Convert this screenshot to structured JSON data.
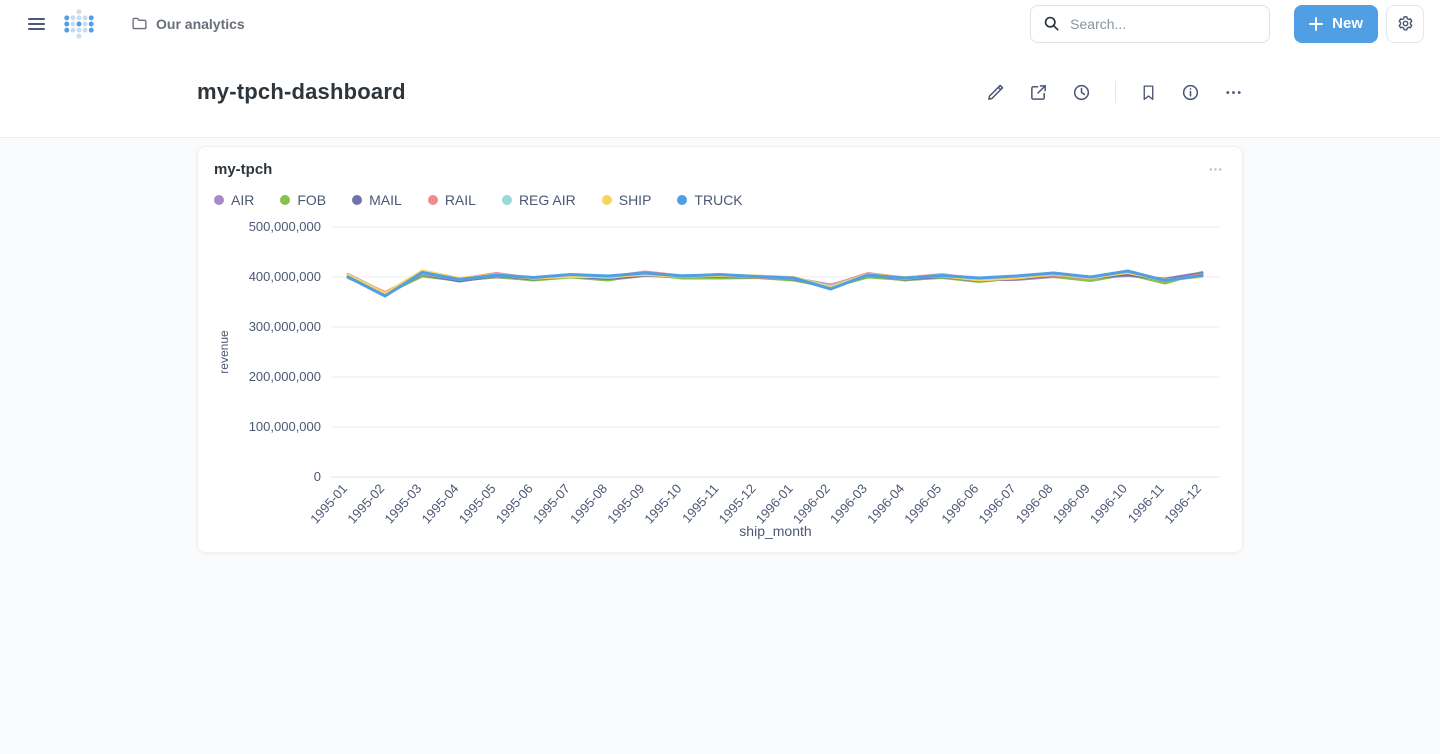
{
  "navbar": {
    "breadcrumb": "Our analytics",
    "search_placeholder": "Search...",
    "new_button_label": "New"
  },
  "page": {
    "title": "my-tpch-dashboard"
  },
  "card": {
    "title": "my-tpch"
  },
  "colors": {
    "brand": "#509ee3",
    "text_dark": "#2e353b",
    "text_medium": "#4c5773",
    "grid_line": "#eceef1",
    "axis_line": "#e3e6ea",
    "page_background": "#f9fbfc"
  },
  "icons": {
    "hamburger": "menu-icon",
    "logo": "metabase-dots-logo",
    "folder": "collection-folder-icon",
    "search": "magnifier-icon",
    "plus": "plus-icon",
    "gear": "settings-gear-icon",
    "pencil": "edit-pencil-icon",
    "share": "share-icon",
    "clock": "history-clock-icon",
    "bookmark": "bookmark-icon",
    "info": "info-circle-icon",
    "ellipsis": "more-ellipsis-icon"
  },
  "chart_data": {
    "type": "line",
    "title": "my-tpch",
    "xlabel": "ship_month",
    "ylabel": "revenue",
    "ylim": [
      0,
      500000000
    ],
    "y_ticks": [
      0,
      100000000,
      200000000,
      300000000,
      400000000,
      500000000
    ],
    "grid": true,
    "legend_position": "top-left",
    "x": [
      "1995-01",
      "1995-02",
      "1995-03",
      "1995-04",
      "1995-05",
      "1995-06",
      "1995-07",
      "1995-08",
      "1995-09",
      "1995-10",
      "1995-11",
      "1995-12",
      "1996-01",
      "1996-02",
      "1996-03",
      "1996-04",
      "1996-05",
      "1996-06",
      "1996-07",
      "1996-08",
      "1996-09",
      "1996-10",
      "1996-11",
      "1996-12"
    ],
    "series": [
      {
        "name": "AIR",
        "color": "#A989C5",
        "values": [
          405000000,
          368000000,
          404000000,
          394000000,
          400000000,
          395000000,
          403000000,
          395000000,
          403000000,
          400000000,
          402000000,
          401000000,
          397000000,
          384000000,
          403000000,
          394000000,
          400000000,
          395000000,
          395000000,
          401000000,
          399000000,
          403000000,
          396000000,
          408000000
        ]
      },
      {
        "name": "FOB",
        "color": "#88BF4D",
        "values": [
          399000000,
          366000000,
          402000000,
          393000000,
          401000000,
          394000000,
          400000000,
          394000000,
          406000000,
          398000000,
          398000000,
          399000000,
          394000000,
          380000000,
          400000000,
          395000000,
          399000000,
          391000000,
          399000000,
          401000000,
          393000000,
          406000000,
          388000000,
          409000000
        ]
      },
      {
        "name": "MAIL",
        "color": "#7172AD",
        "values": [
          403000000,
          367000000,
          406000000,
          392000000,
          403000000,
          396000000,
          402000000,
          397000000,
          404000000,
          401000000,
          401000000,
          400000000,
          396000000,
          382000000,
          404000000,
          396000000,
          401000000,
          393000000,
          397000000,
          403000000,
          398000000,
          405000000,
          395000000,
          407000000
        ]
      },
      {
        "name": "RAIL",
        "color": "#EF8C8C",
        "values": [
          402000000,
          369000000,
          407000000,
          396000000,
          407000000,
          397000000,
          403000000,
          400000000,
          410000000,
          402000000,
          404000000,
          400000000,
          397000000,
          383000000,
          407000000,
          398000000,
          405000000,
          395000000,
          400000000,
          404000000,
          397000000,
          411000000,
          392000000,
          405000000
        ]
      },
      {
        "name": "REG AIR",
        "color": "#98D9D9",
        "values": [
          401000000,
          365000000,
          408000000,
          395000000,
          404000000,
          398000000,
          404000000,
          399000000,
          407000000,
          403000000,
          403000000,
          401000000,
          398000000,
          381000000,
          405000000,
          397000000,
          404000000,
          396000000,
          401000000,
          407000000,
          398000000,
          410000000,
          393000000,
          402000000
        ]
      },
      {
        "name": "SHIP",
        "color": "#F9D45C",
        "values": [
          404000000,
          367000000,
          412000000,
          397000000,
          405000000,
          398000000,
          401000000,
          401000000,
          405000000,
          401000000,
          403000000,
          402000000,
          399000000,
          378000000,
          405000000,
          399000000,
          402000000,
          394000000,
          398000000,
          406000000,
          399000000,
          409000000,
          394000000,
          401000000
        ]
      },
      {
        "name": "TRUCK",
        "color": "#509EE3",
        "values": [
          400000000,
          362000000,
          409000000,
          395000000,
          404000000,
          399000000,
          405000000,
          402000000,
          408000000,
          402000000,
          405000000,
          401000000,
          398000000,
          376000000,
          404000000,
          398000000,
          403000000,
          398000000,
          402000000,
          408000000,
          400000000,
          412000000,
          393000000,
          403000000
        ]
      }
    ]
  }
}
